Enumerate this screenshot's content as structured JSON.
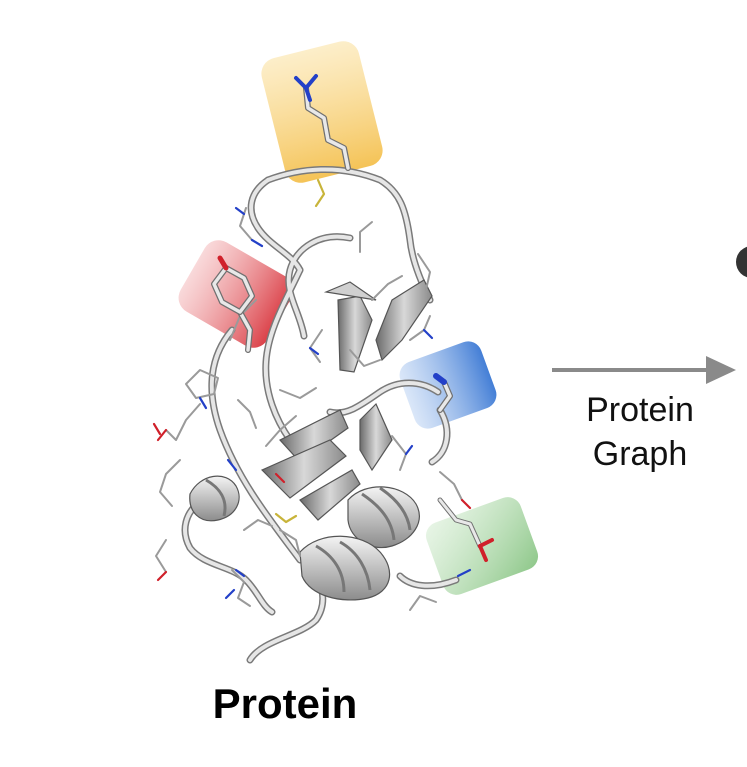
{
  "protein_label": "Protein",
  "arrow": {
    "line1": "Protein",
    "line2": "Graph"
  },
  "highlight_colors": {
    "yellow": "#f4c04e",
    "red": "#d9363e",
    "blue": "#3a78d4",
    "green": "#7fc07a"
  },
  "atom_colors": {
    "carbon": "#c8c8c8",
    "nitrogen": "#2340c8",
    "oxygen": "#d0202a",
    "sulfur": "#c8b43a"
  },
  "next_node_color": "#333333"
}
